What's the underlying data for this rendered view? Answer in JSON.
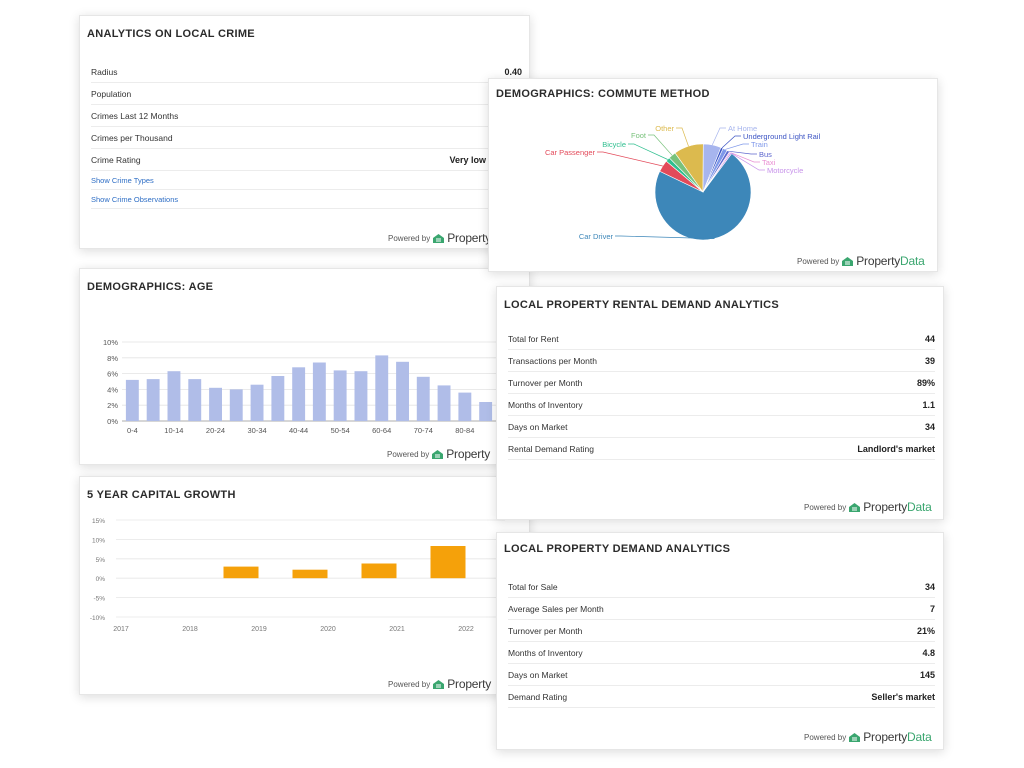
{
  "colors": {
    "age_bar": "#b0bde8",
    "growth_bar": "#f5a10a",
    "brand_green": "#3aa66f",
    "link": "#2e6ec5"
  },
  "powered_by": {
    "label": "Powered by",
    "brand_part1": "Property",
    "brand_part2": "Data"
  },
  "crime": {
    "title": "ANALYTICS ON LOCAL CRIME",
    "rows": [
      {
        "label": "Radius",
        "value": "0.40"
      },
      {
        "label": "Population",
        "value": ""
      },
      {
        "label": "Crimes Last 12 Months",
        "value": ""
      },
      {
        "label": "Crimes per Thousand",
        "value": ""
      },
      {
        "label": "Crime Rating",
        "value": "Very low"
      }
    ],
    "links": [
      "Show Crime Types",
      "Show Crime Observations"
    ]
  },
  "commute": {
    "title": "DEMOGRAPHICS: COMMUTE METHOD"
  },
  "age": {
    "title": "DEMOGRAPHICS: AGE"
  },
  "growth": {
    "title": "5 YEAR CAPITAL GROWTH"
  },
  "rental": {
    "title": "LOCAL PROPERTY RENTAL DEMAND ANALYTICS",
    "rows": [
      {
        "label": "Total for Rent",
        "value": "44"
      },
      {
        "label": "Transactions per Month",
        "value": "39"
      },
      {
        "label": "Turnover per Month",
        "value": "89%"
      },
      {
        "label": "Months of Inventory",
        "value": "1.1"
      },
      {
        "label": "Days on Market",
        "value": "34"
      },
      {
        "label": "Rental Demand Rating",
        "value": "Landlord's market"
      }
    ]
  },
  "demand": {
    "title": "LOCAL PROPERTY DEMAND ANALYTICS",
    "rows": [
      {
        "label": "Total for Sale",
        "value": "34"
      },
      {
        "label": "Average Sales per Month",
        "value": "7"
      },
      {
        "label": "Turnover per Month",
        "value": "21%"
      },
      {
        "label": "Months of Inventory",
        "value": "4.8"
      },
      {
        "label": "Days on Market",
        "value": "145"
      },
      {
        "label": "Demand Rating",
        "value": "Seller's market"
      }
    ]
  },
  "chart_data": [
    {
      "type": "pie",
      "slices": [
        {
          "label": "Car Driver",
          "value": 72,
          "color": "#3d87b9"
        },
        {
          "label": "Car Passenger",
          "value": 4,
          "color": "#e34a5a"
        },
        {
          "label": "Bicycle",
          "value": 1.5,
          "color": "#2fbf8f"
        },
        {
          "label": "Foot",
          "value": 2.5,
          "color": "#78c27b"
        },
        {
          "label": "Other",
          "value": 10,
          "color": "#dcba4e"
        },
        {
          "label": "At Home",
          "value": 6,
          "color": "#a7b5ee"
        },
        {
          "label": "Underground Light Rail",
          "value": 0.8,
          "color": "#3d55c4"
        },
        {
          "label": "Train",
          "value": 1.5,
          "color": "#7f98ea"
        },
        {
          "label": "Bus",
          "value": 0.9,
          "color": "#5c66ce"
        },
        {
          "label": "Taxi",
          "value": 0.4,
          "color": "#e98fd3"
        },
        {
          "label": "Motorcycle",
          "value": 0.5,
          "color": "#c792ea"
        }
      ]
    },
    {
      "type": "bar",
      "categories": [
        "0-4",
        "5-9",
        "10-14",
        "15-19",
        "20-24",
        "25-29",
        "30-34",
        "35-39",
        "40-44",
        "45-49",
        "50-54",
        "55-59",
        "60-64",
        "65-69",
        "70-74",
        "75-79",
        "80-84",
        "85+"
      ],
      "tick_labels": [
        "0-4",
        "10-14",
        "20-24",
        "30-34",
        "40-44",
        "50-54",
        "60-64",
        "70-74",
        "80-84"
      ],
      "values": [
        5.2,
        5.3,
        6.3,
        5.3,
        4.2,
        4.0,
        4.6,
        5.7,
        6.8,
        7.4,
        6.4,
        6.3,
        8.3,
        7.5,
        5.6,
        4.5,
        3.6,
        2.4
      ],
      "yticks": [
        "0%",
        "2%",
        "4%",
        "6%",
        "8%",
        "10%"
      ],
      "ylim": [
        0,
        10
      ]
    },
    {
      "type": "bar",
      "categories": [
        "2017",
        "2018",
        "2019",
        "2020",
        "2021",
        "2022"
      ],
      "values": [
        0,
        3.0,
        2.2,
        3.8,
        8.3,
        9.8
      ],
      "yticks": [
        "15%",
        "10%",
        "5%",
        "0%",
        "-5%",
        "-10%"
      ],
      "ylim": [
        -10,
        15
      ]
    }
  ]
}
